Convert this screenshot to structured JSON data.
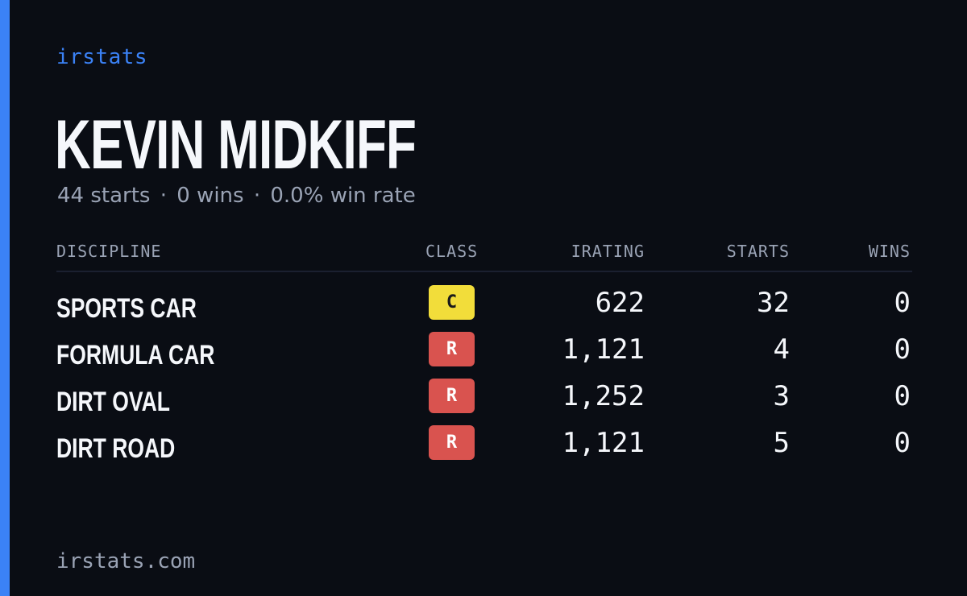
{
  "brand": "irstats",
  "driver": {
    "name": "KEVIN MIDKIFF",
    "starts_text": "44 starts",
    "wins_text": "0 wins",
    "winrate_text": "0.0% win rate",
    "separator": "·"
  },
  "table": {
    "headers": {
      "discipline": "DISCIPLINE",
      "class": "CLASS",
      "irating": "IRATING",
      "starts": "STARTS",
      "wins": "WINS"
    },
    "rows": [
      {
        "discipline": "SPORTS CAR",
        "class": "C",
        "irating": "622",
        "starts": "32",
        "wins": "0"
      },
      {
        "discipline": "FORMULA CAR",
        "class": "R",
        "irating": "1,121",
        "starts": "4",
        "wins": "0"
      },
      {
        "discipline": "DIRT OVAL",
        "class": "R",
        "irating": "1,252",
        "starts": "3",
        "wins": "0"
      },
      {
        "discipline": "DIRT ROAD",
        "class": "R",
        "irating": "1,121",
        "starts": "5",
        "wins": "0"
      }
    ]
  },
  "footer": "irstats.com",
  "colors": {
    "accent": "#3b82f6",
    "background": "#0a0d14",
    "class_c": "#f2dd3a",
    "class_r": "#d9534f"
  }
}
